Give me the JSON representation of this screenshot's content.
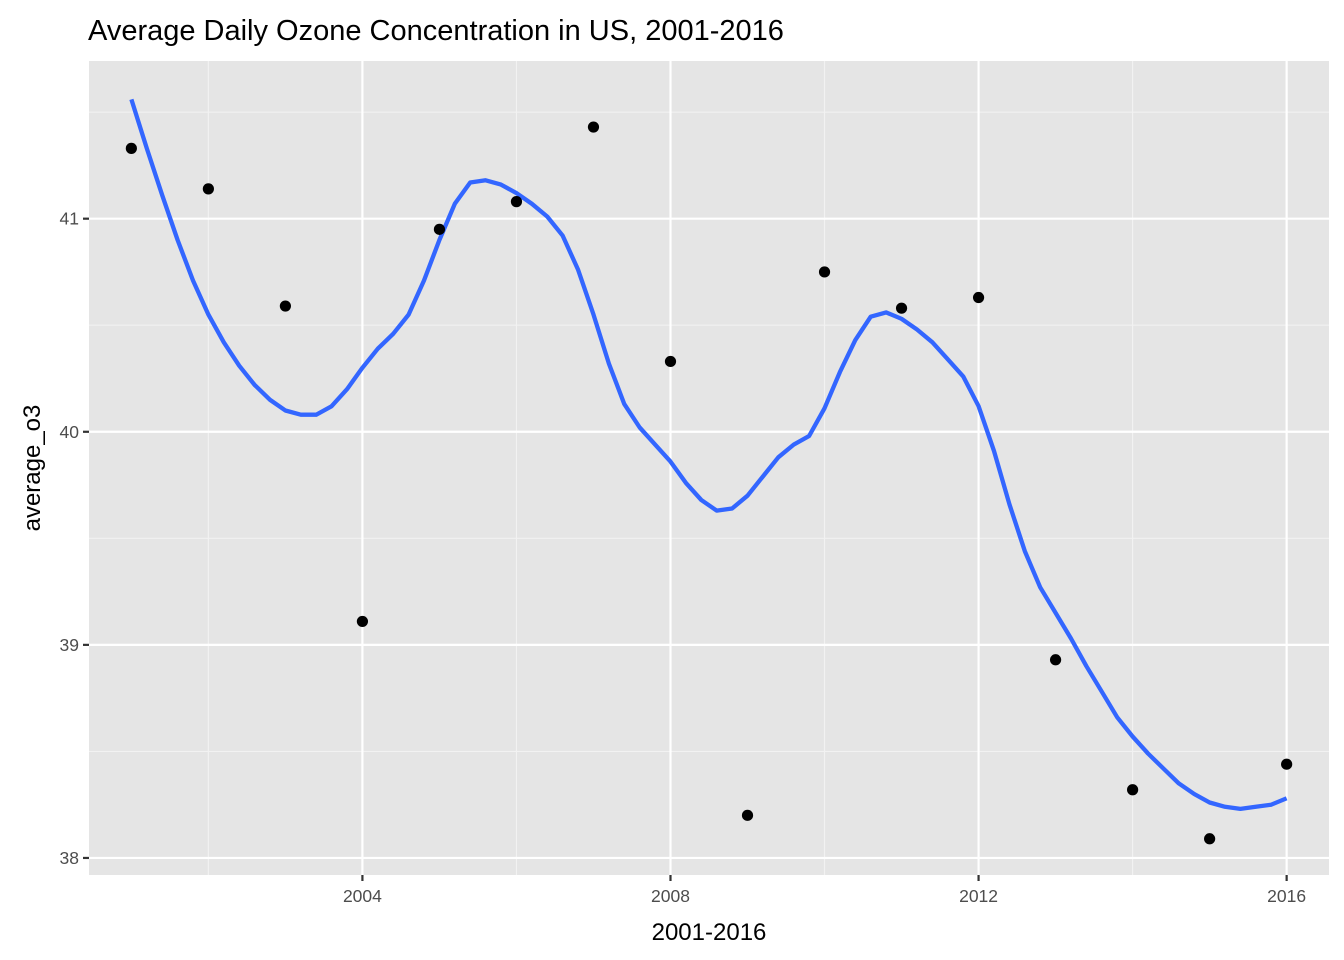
{
  "chart_data": {
    "type": "scatter",
    "title": "Average Daily Ozone Concentration in US, 2001-2016",
    "xlabel": "2001-2016",
    "ylabel": "average_o3",
    "xlim": [
      2000.45,
      2016.55
    ],
    "ylim": [
      37.92,
      41.74
    ],
    "x_ticks": [
      2004,
      2008,
      2012,
      2016
    ],
    "x_minor_ticks": [
      2002,
      2006,
      2010,
      2014
    ],
    "y_ticks": [
      38,
      39,
      40,
      41
    ],
    "y_minor_ticks": [
      38.5,
      39.5,
      40.5,
      41.5
    ],
    "grid": true,
    "background": "#e5e5e5",
    "series": [
      {
        "kind": "points",
        "color": "#000000",
        "x": [
          2001,
          2002,
          2003,
          2004,
          2005,
          2006,
          2007,
          2008,
          2009,
          2010,
          2011,
          2012,
          2013,
          2014,
          2015,
          2016
        ],
        "y": [
          41.33,
          41.14,
          40.59,
          39.11,
          40.95,
          41.08,
          41.43,
          40.33,
          38.2,
          40.75,
          40.58,
          40.63,
          38.93,
          38.32,
          38.09,
          38.44
        ]
      },
      {
        "kind": "smooth",
        "color": "#3366ff",
        "x": [
          2001,
          2001.2,
          2001.4,
          2001.6,
          2001.8,
          2002,
          2002.2,
          2002.4,
          2002.6,
          2002.8,
          2003,
          2003.2,
          2003.4,
          2003.6,
          2003.8,
          2004,
          2004.2,
          2004.4,
          2004.6,
          2004.8,
          2005,
          2005.2,
          2005.4,
          2005.6,
          2005.8,
          2006,
          2006.2,
          2006.4,
          2006.6,
          2006.8,
          2007,
          2007.2,
          2007.4,
          2007.6,
          2007.8,
          2008,
          2008.2,
          2008.4,
          2008.6,
          2008.8,
          2009,
          2009.2,
          2009.4,
          2009.6,
          2009.8,
          2010,
          2010.2,
          2010.4,
          2010.6,
          2010.8,
          2011,
          2011.2,
          2011.4,
          2011.6,
          2011.8,
          2012,
          2012.2,
          2012.4,
          2012.6,
          2012.8,
          2013,
          2013.2,
          2013.4,
          2013.6,
          2013.8,
          2014,
          2014.2,
          2014.4,
          2014.6,
          2014.8,
          2015,
          2015.2,
          2015.4,
          2015.6,
          2015.8,
          2016
        ],
        "y": [
          41.56,
          41.33,
          41.11,
          40.9,
          40.71,
          40.55,
          40.42,
          40.31,
          40.22,
          40.15,
          40.1,
          40.08,
          40.08,
          40.12,
          40.2,
          40.3,
          40.39,
          40.46,
          40.55,
          40.71,
          40.9,
          41.07,
          41.17,
          41.18,
          41.16,
          41.12,
          41.07,
          41.01,
          40.92,
          40.76,
          40.55,
          40.32,
          40.13,
          40.02,
          39.94,
          39.86,
          39.76,
          39.68,
          39.63,
          39.64,
          39.7,
          39.79,
          39.88,
          39.94,
          39.98,
          40.11,
          40.28,
          40.43,
          40.54,
          40.56,
          40.53,
          40.48,
          40.42,
          40.34,
          40.26,
          40.12,
          39.91,
          39.66,
          39.44,
          39.27,
          39.15,
          39.03,
          38.9,
          38.78,
          38.66,
          38.57,
          38.49,
          38.42,
          38.35,
          38.3,
          38.26,
          38.24,
          38.23,
          38.24,
          38.25,
          38.28
        ]
      }
    ]
  }
}
